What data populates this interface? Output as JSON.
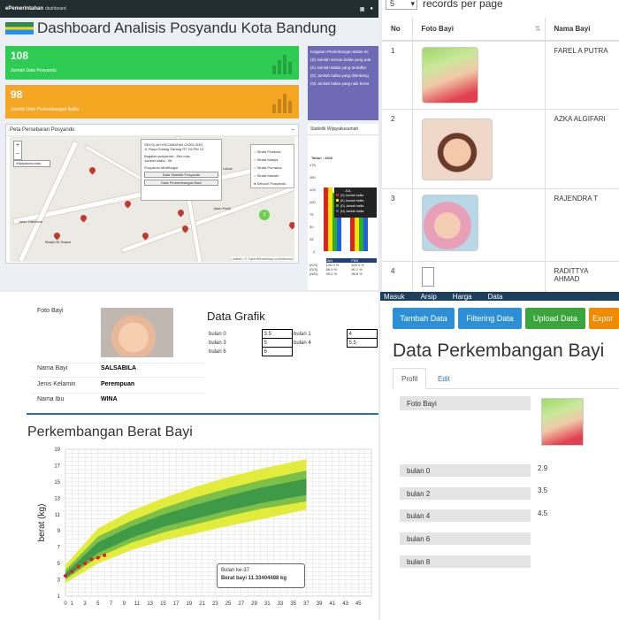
{
  "dashboard": {
    "brand": "ePemerintahan",
    "brand_sub": "dashboard",
    "title": "Dashboard Analisis Posyandu Kota Bandung",
    "kpi1": {
      "value": "108",
      "label": "Jumlah Data Posyandu",
      "color": "#2ecc52"
    },
    "kpi2": {
      "value": "98",
      "label": "Jumlah Data Perkembangan Balita",
      "color": "#f5a623"
    },
    "legend": {
      "title": "Kegiatan Penimbangan Bulan Ini",
      "items": [
        "(S) Jumlah semua balita yang ada",
        "(K) Jumlah Balita yang terdaftar",
        "(D) Jumlah balita yang ditimbang",
        "(N) Jumlah balita yang naik berat"
      ]
    },
    "map": {
      "title": "Peta Persebaran Posyandu",
      "search_placeholder": "Wijayakusumah",
      "popup_name": "SEKOLAH KECAMATAN CIDELONG",
      "popup_addr": "Jl. Raya Dalang Sarang RT 04 RW 13",
      "popup_line1": "Bagaian posyandu : 8bu mas",
      "popup_line2": "Jumlah balita : 98",
      "popup_strata": "Posyandu Multifungsi",
      "popup_btn1": "Data Statistik Posyandu",
      "popup_btn2": "Data Perkembangan Baci",
      "layers": [
        "Strata Pratama",
        "Strata Madya",
        "Strata Purnama",
        "Strata Mandiri",
        "Seluruh Posyandu"
      ],
      "streets": [
        "Jalan Ganesha",
        "Jalan Lebak",
        "Jalan Paldi"
      ],
      "place": "Masjid Al-Taqwa",
      "attribution": "Leaflet | © OpenStreetMap contributors"
    },
    "stat": {
      "title": "Statistik Wijayakusumah",
      "year": "Tahun : 2016",
      "legend": [
        "(S) Jumlah balita",
        "(K) Jumlah balita",
        "(D) Jumlah balita",
        "(N) Jumlah balita"
      ],
      "month_hd": "JUL",
      "rows": [
        {
          "k": "(K/S)",
          "a": "100.0 %",
          "b": "100.0 %"
        },
        {
          "k": "(D/S)",
          "a": "88.9 %",
          "b": "90.1 %"
        },
        {
          "k": "(N/D)",
          "a": "95.2 %",
          "b": "95.8 %"
        }
      ],
      "cols": [
        "JAN",
        "FEB"
      ]
    }
  },
  "records": {
    "page_size": "5",
    "suffix": "records per page",
    "headers": [
      "No",
      "Foto Bayi",
      "Nama Bayi"
    ],
    "rows": [
      {
        "no": "1",
        "name": "FAREL A PUTRA"
      },
      {
        "no": "2",
        "name": "AZKA ALGIFARI"
      },
      {
        "no": "3",
        "name": "RAJENDRA T"
      },
      {
        "no": "4",
        "name": "RADITTYA AHMAD"
      }
    ]
  },
  "detail": {
    "foto_label": "Foto Bayi",
    "fields": [
      {
        "label": "Nama Bayi",
        "value": "SALSABILA"
      },
      {
        "label": "Jenis Kelamin",
        "value": "Perempuan"
      },
      {
        "label": "Nama Ibu",
        "value": "WINA"
      }
    ],
    "grafik_title": "Data Grafik",
    "grafik_left": [
      {
        "label": "bulan 0",
        "value": "3.5"
      },
      {
        "label": "bulan 3",
        "value": "5"
      },
      {
        "label": "bulan 6",
        "value": "6"
      }
    ],
    "grafik_right": [
      {
        "label": "bulan 1",
        "value": "4"
      },
      {
        "label": "bulan 4",
        "value": "5.5"
      }
    ],
    "tooltip_line1": "Bulan ke-37",
    "tooltip_line2": "Berat bayi 11.33404488 kg"
  },
  "chart_data": {
    "type": "line",
    "title": "Perkembangan Berat Bayi",
    "ylabel": "berat (kg)",
    "xlabel": "",
    "xlim": [
      0,
      47
    ],
    "ylim": [
      1,
      19
    ],
    "yticks": [
      1,
      3,
      5,
      7,
      9,
      11,
      13,
      15,
      17,
      19
    ],
    "xticks": [
      0,
      1,
      3,
      5,
      7,
      9,
      11,
      13,
      15,
      17,
      19,
      21,
      23,
      25,
      27,
      29,
      31,
      33,
      35,
      37,
      39,
      41,
      43,
      45
    ],
    "grid": true,
    "series": [
      {
        "name": "",
        "color": "#e02020",
        "x": [
          0,
          1,
          2,
          3,
          4,
          5,
          6
        ],
        "y": [
          3.5,
          4,
          4.6,
          5,
          5.5,
          5.7,
          6
        ]
      }
    ],
    "band_x": [
      0,
      5,
      10,
      15,
      20,
      25,
      30,
      37
    ],
    "band_outer_low": [
      2.6,
      5.0,
      6.6,
      7.8,
      8.7,
      9.6,
      10.4,
      11.6
    ],
    "band_outer_high": [
      4.8,
      9.3,
      11.4,
      13.0,
      14.4,
      15.6,
      16.6,
      17.8
    ],
    "band_inner_low": [
      3.0,
      5.8,
      7.5,
      8.8,
      9.8,
      10.8,
      11.7,
      12.6
    ],
    "band_inner_high": [
      4.2,
      8.3,
      10.2,
      11.8,
      13.1,
      14.2,
      15.2,
      16.4
    ],
    "band_core_low": [
      3.2,
      6.3,
      8.1,
      9.5,
      10.5,
      11.5,
      12.4,
      13.4
    ],
    "band_core_high": [
      3.8,
      7.6,
      9.5,
      11.0,
      12.2,
      13.3,
      14.3,
      15.4
    ]
  },
  "profile": {
    "nav_items": [
      "Masuk",
      "Arsip",
      "Harga",
      "Data"
    ],
    "buttons": [
      {
        "label": "Tambah Data",
        "color": "#2d8fd5"
      },
      {
        "label": "Filtering Data",
        "color": "#2d8fd5"
      },
      {
        "label": "Upload Data",
        "color": "#3aa53a"
      },
      {
        "label": "Expor",
        "color": "#f08a00"
      }
    ],
    "title": "Data Perkembangan Bayi",
    "tabs": [
      "Profil",
      "Edit"
    ],
    "foto_label": "Foto Bayi",
    "fields": [
      {
        "label": "bulan 0",
        "value": "2.9"
      },
      {
        "label": "bulan 2",
        "value": "3.5"
      },
      {
        "label": "bulan 4",
        "value": "4.5"
      },
      {
        "label": "bulan 6",
        "value": ""
      },
      {
        "label": "bulan 8",
        "value": ""
      }
    ]
  }
}
